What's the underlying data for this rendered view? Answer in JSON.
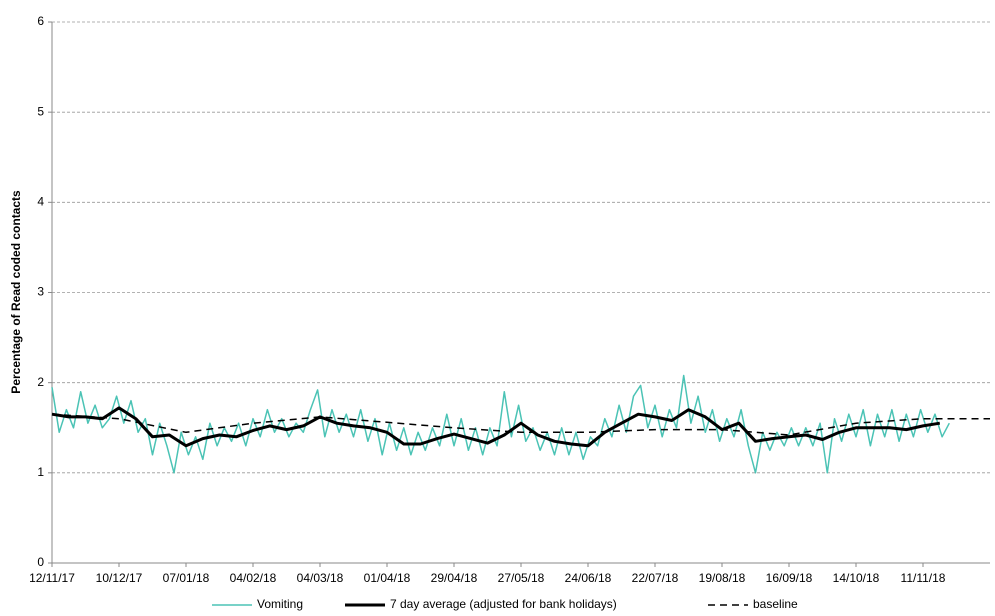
{
  "chart_data": {
    "type": "line",
    "y_label": "Percentage of Read coded contacts",
    "xlim": [
      0,
      392
    ],
    "ylim": [
      0,
      6
    ],
    "yticks": [
      0,
      1,
      2,
      3,
      4,
      5,
      6
    ],
    "xticks": [
      {
        "value": 0,
        "label": "12/11/17"
      },
      {
        "value": 28,
        "label": "10/12/17"
      },
      {
        "value": 56,
        "label": "07/01/18"
      },
      {
        "value": 84,
        "label": "04/02/18"
      },
      {
        "value": 112,
        "label": "04/03/18"
      },
      {
        "value": 140,
        "label": "01/04/18"
      },
      {
        "value": 168,
        "label": "29/04/18"
      },
      {
        "value": 196,
        "label": "27/05/18"
      },
      {
        "value": 224,
        "label": "24/06/18"
      },
      {
        "value": 252,
        "label": "22/07/18"
      },
      {
        "value": 280,
        "label": "19/08/18"
      },
      {
        "value": 308,
        "label": "16/09/18"
      },
      {
        "value": 336,
        "label": "14/10/18"
      },
      {
        "value": 364,
        "label": "11/11/18"
      }
    ],
    "grid": true,
    "legend": "bottom",
    "series": [
      {
        "name": "Vomiting",
        "color": "#4bc3b5",
        "width": 1.5,
        "dashed": false,
        "x": [
          0,
          3,
          6,
          9,
          12,
          15,
          18,
          21,
          24,
          27,
          30,
          33,
          36,
          39,
          42,
          45,
          48,
          51,
          54,
          57,
          60,
          63,
          66,
          69,
          72,
          75,
          78,
          81,
          84,
          87,
          90,
          93,
          96,
          99,
          102,
          105,
          108,
          111,
          114,
          117,
          120,
          123,
          126,
          129,
          132,
          135,
          138,
          141,
          144,
          147,
          150,
          153,
          156,
          159,
          162,
          165,
          168,
          171,
          174,
          177,
          180,
          183,
          186,
          189,
          192,
          195,
          198,
          201,
          204,
          207,
          210,
          213,
          216,
          219,
          222,
          225,
          228,
          231,
          234,
          237,
          240,
          243,
          246,
          249,
          252,
          255,
          258,
          261,
          264,
          267,
          270,
          273,
          276,
          279,
          282,
          285,
          288,
          291,
          294,
          297,
          300,
          303,
          306,
          309,
          312,
          315,
          318,
          321,
          324,
          327,
          330,
          333,
          336,
          339,
          342,
          345,
          348,
          351,
          354,
          357,
          360,
          363,
          366,
          369,
          372,
          375
        ],
        "values": [
          1.95,
          1.45,
          1.7,
          1.5,
          1.9,
          1.55,
          1.75,
          1.5,
          1.6,
          1.85,
          1.55,
          1.8,
          1.45,
          1.6,
          1.2,
          1.55,
          1.3,
          1.0,
          1.45,
          1.2,
          1.4,
          1.15,
          1.55,
          1.3,
          1.5,
          1.35,
          1.55,
          1.3,
          1.6,
          1.4,
          1.7,
          1.45,
          1.6,
          1.4,
          1.55,
          1.45,
          1.7,
          1.92,
          1.4,
          1.7,
          1.45,
          1.65,
          1.4,
          1.7,
          1.35,
          1.6,
          1.2,
          1.55,
          1.25,
          1.5,
          1.2,
          1.45,
          1.25,
          1.5,
          1.3,
          1.65,
          1.3,
          1.6,
          1.25,
          1.5,
          1.2,
          1.5,
          1.3,
          1.9,
          1.4,
          1.75,
          1.35,
          1.5,
          1.25,
          1.45,
          1.2,
          1.5,
          1.2,
          1.45,
          1.15,
          1.4,
          1.3,
          1.6,
          1.4,
          1.75,
          1.45,
          1.85,
          1.97,
          1.5,
          1.75,
          1.4,
          1.7,
          1.5,
          2.08,
          1.55,
          1.85,
          1.45,
          1.7,
          1.35,
          1.6,
          1.4,
          1.7,
          1.3,
          1.0,
          1.45,
          1.25,
          1.45,
          1.3,
          1.5,
          1.3,
          1.5,
          1.3,
          1.55,
          1.0,
          1.6,
          1.35,
          1.65,
          1.4,
          1.7,
          1.3,
          1.65,
          1.4,
          1.7,
          1.35,
          1.65,
          1.4,
          1.7,
          1.45,
          1.65,
          1.4,
          1.55
        ]
      },
      {
        "name": "7 day average (adjusted for bank holidays)",
        "color": "#000000",
        "width": 3,
        "dashed": false,
        "x": [
          0,
          7,
          14,
          21,
          28,
          35,
          42,
          49,
          56,
          63,
          70,
          77,
          84,
          91,
          98,
          105,
          112,
          119,
          126,
          133,
          140,
          147,
          154,
          161,
          168,
          175,
          182,
          189,
          196,
          203,
          210,
          217,
          224,
          231,
          238,
          245,
          252,
          259,
          266,
          273,
          280,
          287,
          294,
          301,
          308,
          315,
          322,
          329,
          336,
          343,
          350,
          357,
          364,
          371
        ],
        "values": [
          1.65,
          1.62,
          1.62,
          1.6,
          1.72,
          1.6,
          1.4,
          1.42,
          1.3,
          1.38,
          1.42,
          1.4,
          1.47,
          1.52,
          1.48,
          1.52,
          1.62,
          1.55,
          1.52,
          1.5,
          1.45,
          1.32,
          1.32,
          1.38,
          1.43,
          1.38,
          1.33,
          1.42,
          1.55,
          1.42,
          1.35,
          1.32,
          1.3,
          1.45,
          1.55,
          1.65,
          1.62,
          1.58,
          1.7,
          1.62,
          1.48,
          1.55,
          1.35,
          1.38,
          1.4,
          1.42,
          1.37,
          1.45,
          1.5,
          1.5,
          1.5,
          1.48,
          1.52,
          1.55
        ]
      },
      {
        "name": "baseline",
        "color": "#000000",
        "width": 1.5,
        "dashed": true,
        "x": [
          0,
          28,
          56,
          84,
          112,
          140,
          168,
          196,
          224,
          252,
          280,
          308,
          336,
          364,
          392
        ],
        "values": [
          1.65,
          1.6,
          1.45,
          1.55,
          1.62,
          1.56,
          1.5,
          1.45,
          1.45,
          1.48,
          1.48,
          1.42,
          1.55,
          1.6,
          1.6
        ]
      }
    ]
  }
}
